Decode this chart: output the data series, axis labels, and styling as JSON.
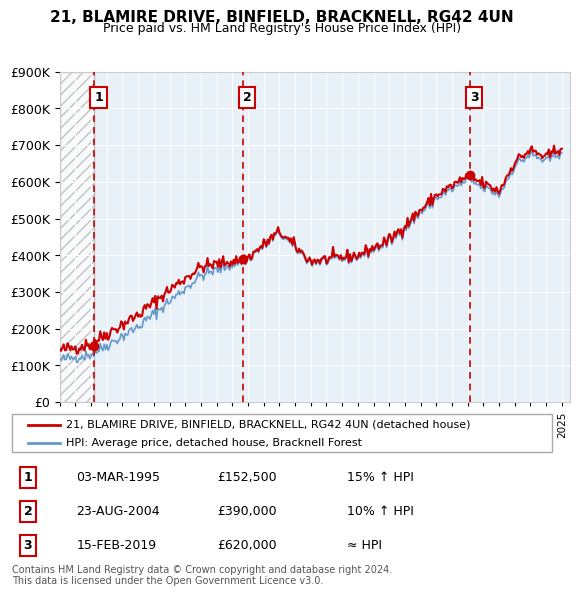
{
  "title": "21, BLAMIRE DRIVE, BINFIELD, BRACKNELL, RG42 4UN",
  "subtitle": "Price paid vs. HM Land Registry's House Price Index (HPI)",
  "ylim": [
    0,
    900000
  ],
  "xlim_start": 1993,
  "xlim_end": 2025.5,
  "yticks": [
    0,
    100000,
    200000,
    300000,
    400000,
    500000,
    600000,
    700000,
    800000,
    900000
  ],
  "ytick_labels": [
    "£0",
    "£100K",
    "£200K",
    "£300K",
    "£400K",
    "£500K",
    "£600K",
    "£700K",
    "£800K",
    "£900K"
  ],
  "sale_dates": [
    1995.17,
    2004.65,
    2019.12
  ],
  "sale_prices": [
    152500,
    390000,
    620000
  ],
  "sale_labels": [
    "1",
    "2",
    "3"
  ],
  "sale_color": "#cc0000",
  "hpi_color": "#6699cc",
  "vline_color": "#cc0000",
  "legend_entries": [
    "21, BLAMIRE DRIVE, BINFIELD, BRACKNELL, RG42 4UN (detached house)",
    "HPI: Average price, detached house, Bracknell Forest"
  ],
  "table_rows": [
    [
      "1",
      "03-MAR-1995",
      "£152,500",
      "15% ↑ HPI"
    ],
    [
      "2",
      "23-AUG-2004",
      "£390,000",
      "10% ↑ HPI"
    ],
    [
      "3",
      "15-FEB-2019",
      "£620,000",
      "≈ HPI"
    ]
  ],
  "footnote": "Contains HM Land Registry data © Crown copyright and database right 2024.\nThis data is licensed under the Open Government Licence v3.0.",
  "bg_hatch_color": "#cccccc",
  "plot_bg_color": "#e8f0f8",
  "grid_color": "#ffffff"
}
